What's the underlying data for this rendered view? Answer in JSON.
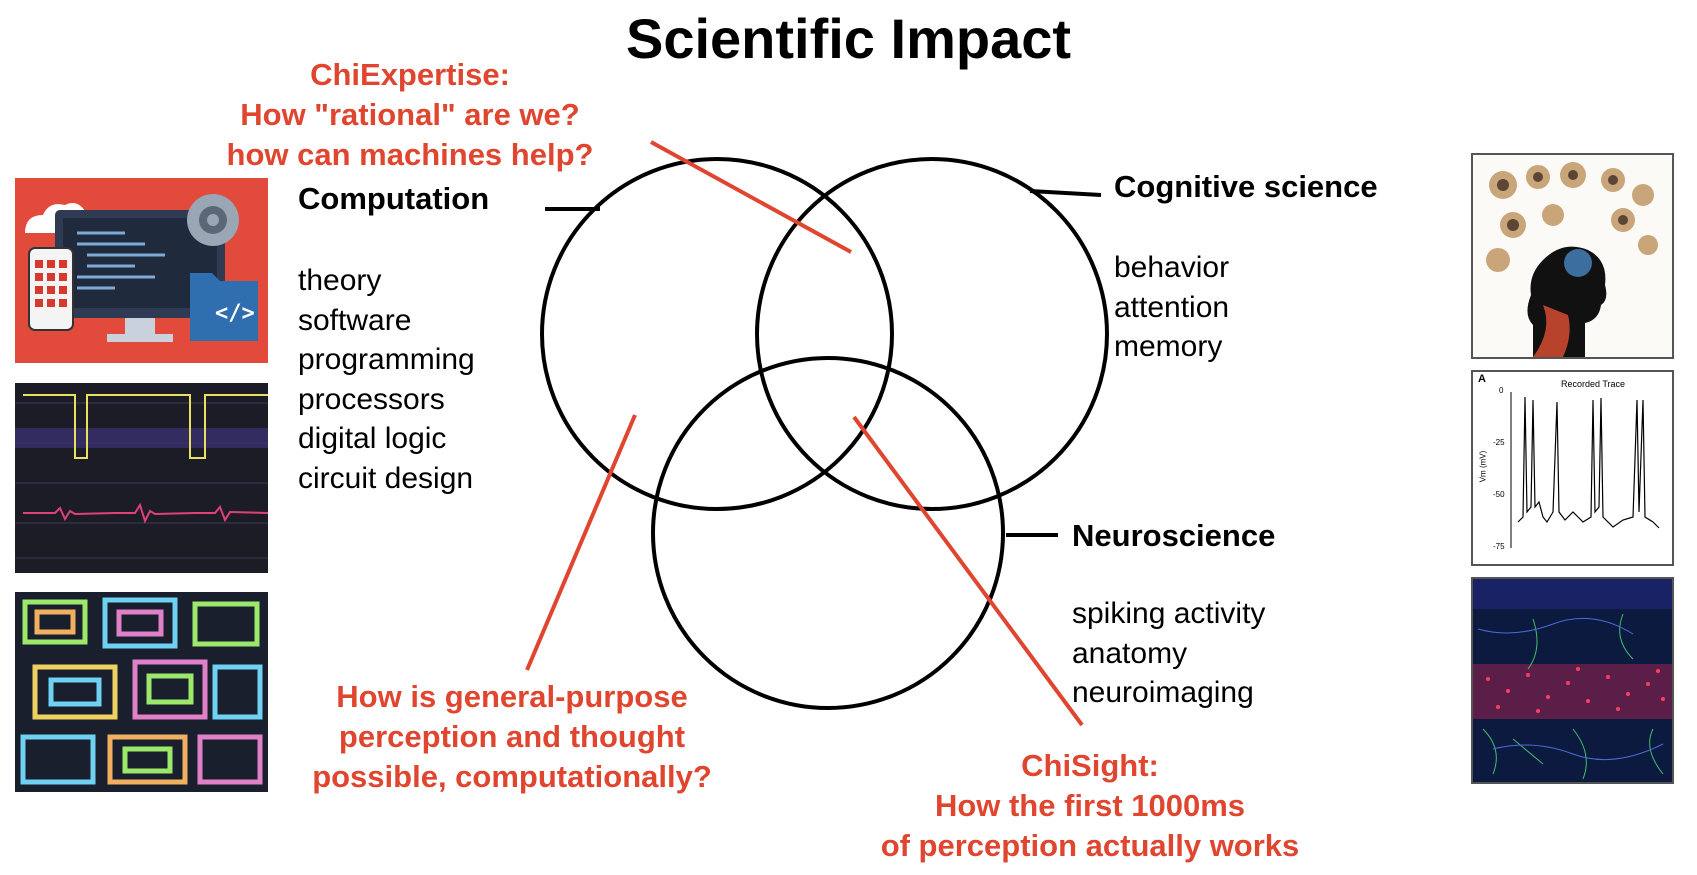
{
  "title": "Scientific Impact",
  "accent_color": "#e0462f",
  "fields": {
    "computation": {
      "label": "Computation",
      "topics": [
        "theory",
        "software",
        "programming",
        "processors",
        "digital logic",
        "circuit design"
      ]
    },
    "cognitive": {
      "label": "Cognitive science",
      "topics": [
        "behavior",
        "attention",
        "memory"
      ]
    },
    "neuro": {
      "label": "Neuroscience",
      "topics": [
        "spiking activity",
        "anatomy",
        "neuroimaging"
      ]
    }
  },
  "callouts": {
    "chiexpertise": [
      "ChiExpertise:",
      "How \"rational\" are we?",
      "how can machines help?"
    ],
    "general": [
      "How is general-purpose",
      "perception and thought",
      "possible, computationally?"
    ],
    "chisight": [
      "ChiSight:",
      "How the first 1000ms",
      "of perception actually works"
    ]
  },
  "images": {
    "trace": {
      "panel_letter": "A",
      "title": "Recorded Trace",
      "ylabel": "Vm (mV)",
      "yticks": [
        "0",
        "-25",
        "-50",
        "-75"
      ]
    }
  }
}
